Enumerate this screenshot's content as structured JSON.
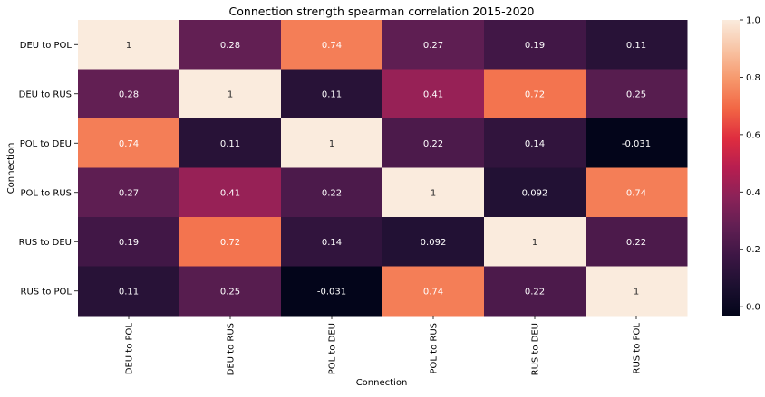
{
  "chart_data": {
    "type": "heatmap",
    "title": "Connection strength spearman correlation 2015-2020",
    "xlabel": "Connection",
    "ylabel": "Connection",
    "x_categories": [
      "DEU to POL",
      "DEU to RUS",
      "POL to DEU",
      "POL to RUS",
      "RUS to DEU",
      "RUS to POL"
    ],
    "y_categories": [
      "DEU to POL",
      "DEU to RUS",
      "POL to DEU",
      "POL to RUS",
      "RUS to DEU",
      "RUS to POL"
    ],
    "values": [
      [
        1,
        0.28,
        0.74,
        0.27,
        0.19,
        0.11
      ],
      [
        0.28,
        1,
        0.11,
        0.41,
        0.72,
        0.25
      ],
      [
        0.74,
        0.11,
        1,
        0.22,
        0.14,
        -0.031
      ],
      [
        0.27,
        0.41,
        0.22,
        1,
        0.092,
        0.74
      ],
      [
        0.19,
        0.72,
        0.14,
        0.092,
        1,
        0.22
      ],
      [
        0.11,
        0.25,
        -0.031,
        0.74,
        0.22,
        1
      ]
    ],
    "cell_labels": [
      [
        "1",
        "0.28",
        "0.74",
        "0.27",
        "0.19",
        "0.11"
      ],
      [
        "0.28",
        "1",
        "0.11",
        "0.41",
        "0.72",
        "0.25"
      ],
      [
        "0.74",
        "0.11",
        "1",
        "0.22",
        "0.14",
        "-0.031"
      ],
      [
        "0.27",
        "0.41",
        "0.22",
        "1",
        "0.092",
        "0.74"
      ],
      [
        "0.19",
        "0.72",
        "0.14",
        "0.092",
        "1",
        "0.22"
      ],
      [
        "0.11",
        "0.25",
        "-0.031",
        "0.74",
        "0.22",
        "1"
      ]
    ],
    "colorbar": {
      "range": [
        -0.031,
        1.0
      ],
      "ticks": [
        0.0,
        0.2,
        0.4,
        0.6,
        0.8,
        1.0
      ],
      "tick_labels": [
        "0.0",
        "0.2",
        "0.4",
        "0.6",
        "0.8",
        "1.0"
      ],
      "colormap": "rocket"
    },
    "grid": false
  }
}
